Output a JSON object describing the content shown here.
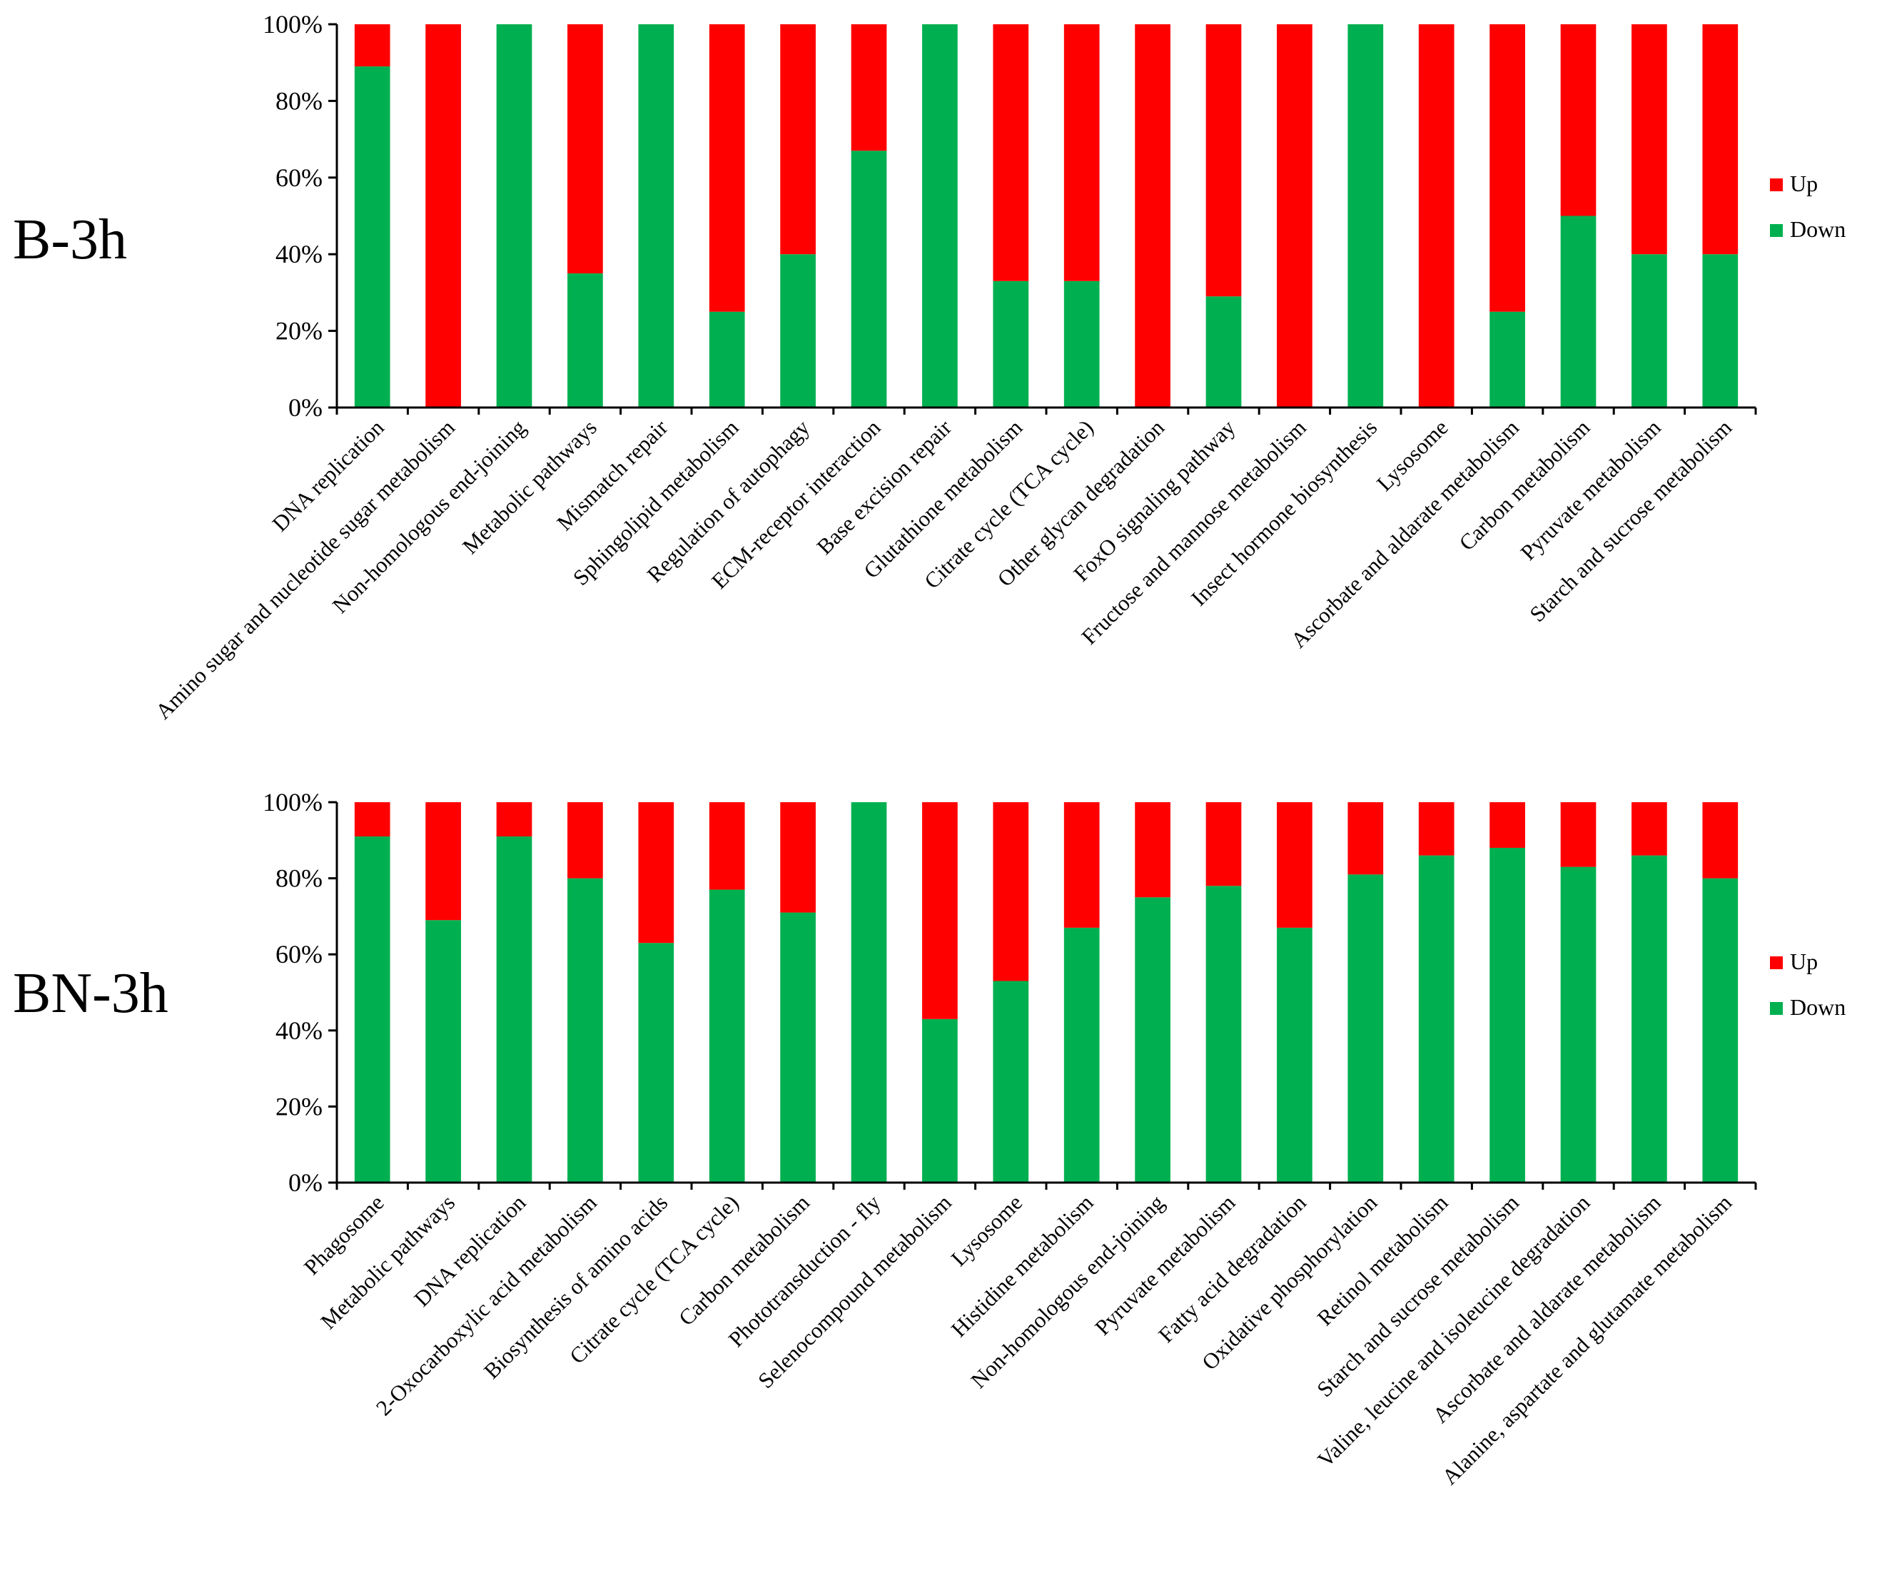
{
  "colors": {
    "up": "#ff0000",
    "down": "#00b050"
  },
  "chart_data": [
    {
      "type": "bar",
      "stacked": "percent",
      "title": "B-3h",
      "xlabel": "",
      "ylabel": "",
      "ylim": [
        0,
        100
      ],
      "yticks": [
        "0%",
        "20%",
        "40%",
        "60%",
        "80%",
        "100%"
      ],
      "legend": [
        "Up",
        "Down"
      ],
      "legend_position": "right",
      "categories": [
        "DNA replication",
        "Amino sugar and nucleotide sugar metabolism",
        "Non-homologous end-joining",
        "Metabolic pathways",
        "Mismatch repair",
        "Sphingolipid metabolism",
        "Regulation of autophagy",
        "ECM-receptor interaction",
        "Base excision repair",
        "Glutathione metabolism",
        "Citrate cycle (TCA cycle)",
        "Other glycan degradation",
        "FoxO signaling pathway",
        "Fructose and mannose metabolism",
        "Insect hormone biosynthesis",
        "Lysosome",
        "Ascorbate and aldarate metabolism",
        "Carbon metabolism",
        "Pyruvate metabolism",
        "Starch and sucrose metabolism"
      ],
      "series": [
        {
          "name": "Down",
          "values": [
            89,
            0,
            100,
            35,
            100,
            25,
            40,
            67,
            100,
            33,
            33,
            0,
            29,
            0,
            100,
            0,
            25,
            50,
            40,
            40
          ]
        },
        {
          "name": "Up",
          "values": [
            11,
            100,
            0,
            65,
            0,
            75,
            60,
            33,
            0,
            67,
            67,
            100,
            71,
            100,
            0,
            100,
            75,
            50,
            60,
            60
          ]
        }
      ]
    },
    {
      "type": "bar",
      "stacked": "percent",
      "title": "BN-3h",
      "xlabel": "",
      "ylabel": "",
      "ylim": [
        0,
        100
      ],
      "yticks": [
        "0%",
        "20%",
        "40%",
        "60%",
        "80%",
        "100%"
      ],
      "legend": [
        "Up",
        "Down"
      ],
      "legend_position": "right",
      "categories": [
        "Phagosome",
        "Metabolic pathways",
        "DNA replication",
        "2-Oxocarboxylic acid metabolism",
        "Biosynthesis of amino acids",
        "Citrate cycle (TCA cycle)",
        "Carbon metabolism",
        "Phototransduction - fly",
        "Selenocompound metabolism",
        "Lysosome",
        "Histidine metabolism",
        "Non-homologous end-joining",
        "Pyruvate metabolism",
        "Fatty acid degradation",
        "Oxidative phosphorylation",
        "Retinol metabolism",
        "Starch and sucrose metabolism",
        "Valine, leucine and isoleucine degradation",
        "Ascorbate and aldarate metabolism",
        "Alanine, aspartate and glutamate metabolism"
      ],
      "series": [
        {
          "name": "Down",
          "values": [
            91,
            69,
            91,
            80,
            63,
            77,
            71,
            100,
            43,
            53,
            67,
            75,
            78,
            67,
            81,
            86,
            88,
            83,
            86,
            80
          ]
        },
        {
          "name": "Up",
          "values": [
            9,
            31,
            9,
            20,
            37,
            23,
            29,
            0,
            57,
            47,
            33,
            25,
            22,
            33,
            19,
            14,
            12,
            17,
            14,
            20
          ]
        }
      ]
    }
  ]
}
